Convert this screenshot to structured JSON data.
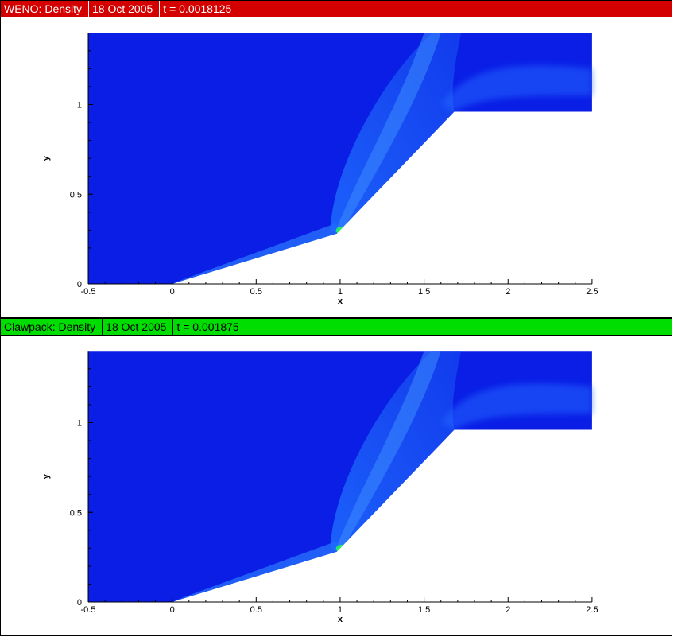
{
  "colors": {
    "header_top": "#d40000",
    "header_bottom": "#00dd00",
    "background_field": "#0a1ee6",
    "wall": "#ffffff"
  },
  "panels": [
    {
      "id": "weno",
      "header": {
        "title": "WENO: Density",
        "date": "18 Oct 2005",
        "time": "t = 0.0018125"
      }
    },
    {
      "id": "clawpack",
      "header": {
        "title": "Clawpack: Density",
        "date": "18 Oct 2005",
        "time": "t = 0.001875"
      }
    }
  ],
  "chart_data": [
    {
      "type": "heatmap",
      "title": "WENO: Density",
      "xlabel": "x",
      "ylabel": "y",
      "xlim": [
        -0.5,
        2.5
      ],
      "ylim": [
        0,
        1.4
      ],
      "x_ticks": [
        -0.5,
        0,
        0.5,
        1,
        1.5,
        2,
        2.5
      ],
      "x_tick_labels": [
        "-0.5",
        "0",
        "0.5",
        "1",
        "1.5",
        "2",
        "2.5"
      ],
      "y_ticks": [
        0,
        0.5,
        1
      ],
      "y_tick_labels": [
        "0",
        "0.5",
        "1"
      ],
      "geometry": {
        "wedge_1": [
          [
            0,
            0
          ],
          [
            0.98,
            0.28
          ]
        ],
        "wedge_2": [
          [
            0.98,
            0.28
          ],
          [
            1.68,
            0.96
          ]
        ],
        "step": [
          [
            1.68,
            0.96
          ],
          [
            2.5,
            0.96
          ]
        ]
      },
      "grid": false
    },
    {
      "type": "heatmap",
      "title": "Clawpack: Density",
      "xlabel": "x",
      "ylabel": "y",
      "xlim": [
        -0.5,
        2.5
      ],
      "ylim": [
        0,
        1.4
      ],
      "x_ticks": [
        -0.5,
        0,
        0.5,
        1,
        1.5,
        2,
        2.5
      ],
      "x_tick_labels": [
        "-0.5",
        "0",
        "0.5",
        "1",
        "1.5",
        "2",
        "2.5"
      ],
      "y_ticks": [
        0,
        0.5,
        1
      ],
      "y_tick_labels": [
        "0",
        "0.5",
        "1"
      ],
      "geometry": {
        "wedge_1": [
          [
            0,
            0
          ],
          [
            0.98,
            0.28
          ]
        ],
        "wedge_2": [
          [
            0.98,
            0.28
          ],
          [
            1.68,
            0.96
          ]
        ],
        "step": [
          [
            1.68,
            0.96
          ],
          [
            2.5,
            0.96
          ]
        ]
      },
      "grid": false
    }
  ]
}
